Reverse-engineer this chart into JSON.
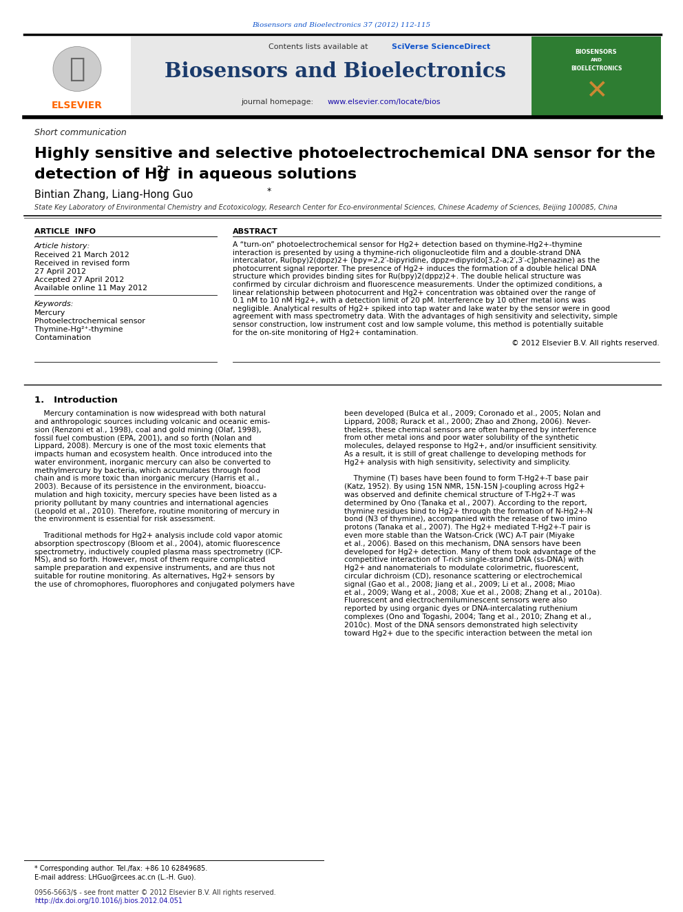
{
  "journal_ref": "Biosensors and Bioelectronics 37 (2012) 112-115",
  "journal_name": "Biosensors and Bioelectronics",
  "journal_homepage": "journal homepage: www.elsevier.com/locate/bios",
  "contents_line": "Contents lists available at SciVerse ScienceDirect",
  "article_type": "Short communication",
  "title_line1": "Highly sensitive and selective photoelectrochemical DNA sensor for the",
  "title_line2a": "detection of Hg",
  "title_line2b": "2+",
  "title_line2c": " in aqueous solutions",
  "authors": "Bintian Zhang, Liang-Hong Guo",
  "affiliation": "State Key Laboratory of Environmental Chemistry and Ecotoxicology, Research Center for Eco-environmental Sciences, Chinese Academy of Sciences, Beijing 100085, China",
  "article_info_header": "ARTICLE  INFO",
  "abstract_header": "ABSTRACT",
  "article_history_label": "Article history:",
  "received1": "Received 21 March 2012",
  "received_revised": "Received in revised form",
  "received_revised_date": "27 April 2012",
  "accepted": "Accepted 27 April 2012",
  "available": "Available online 11 May 2012",
  "keywords_label": "Keywords:",
  "keyword1": "Mercury",
  "keyword2": "Photoelectrochemical sensor",
  "keyword3": "Thymine-Hg²⁺-thymine",
  "keyword4": "Contamination",
  "copyright": "© 2012 Elsevier B.V. All rights reserved.",
  "intro_header": "1.   Introduction",
  "footnote1": "* Corresponding author. Tel./fax: +86 10 62849685.",
  "footnote2": "E-mail address: LHGuo@rcees.ac.cn (L.-H. Guo).",
  "footnote3": "0956-5663/$ - see front matter © 2012 Elsevier B.V. All rights reserved.",
  "footnote4": "http://dx.doi.org/10.1016/j.bios.2012.04.051",
  "elsevier_color": "#FF6600",
  "link_color": "#1a0dab",
  "header_bg": "#E8E8E8",
  "journal_title_color": "#1a3a6b",
  "sciverse_color": "#1155cc",
  "journal_ref_color": "#1155cc",
  "green_cover_color": "#2E7D32",
  "abstract_lines": [
    "A “turn-on” photoelectrochemical sensor for Hg2+ detection based on thymine-Hg2+-thymine",
    "interaction is presented by using a thymine-rich oligonucleotide film and a double-strand DNA",
    "intercalator, Ru(bpy)2(dppz)2+ (bpy=2,2′-bipyridine, dppz=dipyrido[3,2-a;2′,3′-c]phenazine) as the",
    "photocurrent signal reporter. The presence of Hg2+ induces the formation of a double helical DNA",
    "structure which provides binding sites for Ru(bpy)2(dppz)2+. The double helical structure was",
    "confirmed by circular dichroism and fluorescence measurements. Under the optimized conditions, a",
    "linear relationship between photocurrent and Hg2+ concentration was obtained over the range of",
    "0.1 nM to 10 nM Hg2+, with a detection limit of 20 pM. Interference by 10 other metal ions was",
    "negligible. Analytical results of Hg2+ spiked into tap water and lake water by the sensor were in good",
    "agreement with mass spectrometry data. With the advantages of high sensitivity and selectivity, simple",
    "sensor construction, low instrument cost and low sample volume, this method is potentially suitable",
    "for the on-site monitoring of Hg2+ contamination."
  ],
  "intro_col1_lines": [
    "    Mercury contamination is now widespread with both natural",
    "and anthropologic sources including volcanic and oceanic emis-",
    "sion (Renzoni et al., 1998), coal and gold mining (Olaf, 1998),",
    "fossil fuel combustion (EPA, 2001), and so forth (Nolan and",
    "Lippard, 2008). Mercury is one of the most toxic elements that",
    "impacts human and ecosystem health. Once introduced into the",
    "water environment, inorganic mercury can also be converted to",
    "methylmercury by bacteria, which accumulates through food",
    "chain and is more toxic than inorganic mercury (Harris et al.,",
    "2003). Because of its persistence in the environment, bioaccu-",
    "mulation and high toxicity, mercury species have been listed as a",
    "priority pollutant by many countries and international agencies",
    "(Leopold et al., 2010). Therefore, routine monitoring of mercury in",
    "the environment is essential for risk assessment.",
    "",
    "    Traditional methods for Hg2+ analysis include cold vapor atomic",
    "absorption spectroscopy (Bloom et al., 2004), atomic fluorescence",
    "spectrometry, inductively coupled plasma mass spectrometry (ICP-",
    "MS), and so forth. However, most of them require complicated",
    "sample preparation and expensive instruments, and are thus not",
    "suitable for routine monitoring. As alternatives, Hg2+ sensors by",
    "the use of chromophores, fluorophores and conjugated polymers have"
  ],
  "intro_col2_lines": [
    "been developed (Bulca et al., 2009; Coronado et al., 2005; Nolan and",
    "Lippard, 2008; Rurack et al., 2000; Zhao and Zhong, 2006). Never-",
    "theless, these chemical sensors are often hampered by interference",
    "from other metal ions and poor water solubility of the synthetic",
    "molecules, delayed response to Hg2+, and/or insufficient sensitivity.",
    "As a result, it is still of great challenge to developing methods for",
    "Hg2+ analysis with high sensitivity, selectivity and simplicity.",
    "",
    "    Thymine (T) bases have been found to form T-Hg2+-T base pair",
    "(Katz, 1952). By using 15N NMR, 15N-15N J-coupling across Hg2+",
    "was observed and definite chemical structure of T-Hg2+-T was",
    "determined by Ono (Tanaka et al., 2007). According to the report,",
    "thymine residues bind to Hg2+ through the formation of N-Hg2+-N",
    "bond (N3 of thymine), accompanied with the release of two imino",
    "protons (Tanaka et al., 2007). The Hg2+ mediated T-Hg2+-T pair is",
    "even more stable than the Watson-Crick (WC) A-T pair (Miyake",
    "et al., 2006). Based on this mechanism, DNA sensors have been",
    "developed for Hg2+ detection. Many of them took advantage of the",
    "competitive interaction of T-rich single-strand DNA (ss-DNA) with",
    "Hg2+ and nanomaterials to modulate colorimetric, fluorescent,",
    "circular dichroism (CD), resonance scattering or electrochemical",
    "signal (Gao et al., 2008; Jiang et al., 2009; Li et al., 2008; Miao",
    "et al., 2009; Wang et al., 2008; Xue et al., 2008; Zhang et al., 2010a).",
    "Fluorescent and electrochemiluminescent sensors were also",
    "reported by using organic dyes or DNA-intercalating ruthenium",
    "complexes (Ono and Togashi, 2004; Tang et al., 2010; Zhang et al.,",
    "2010c). Most of the DNA sensors demonstrated high selectivity",
    "toward Hg2+ due to the specific interaction between the metal ion"
  ]
}
